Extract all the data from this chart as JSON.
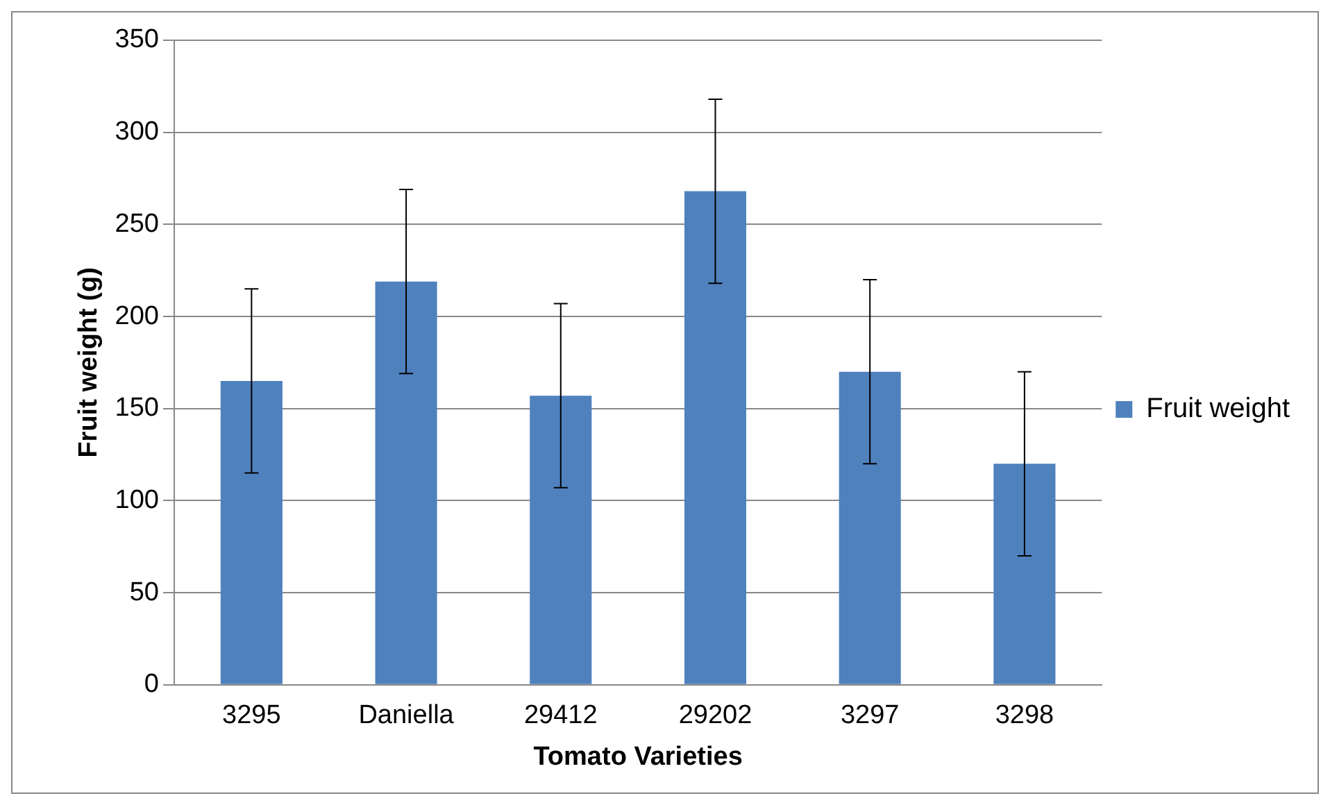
{
  "chart_data": {
    "type": "bar",
    "xlabel": "Tomato Varieties",
    "ylabel": "Fruit weight (g)",
    "categories": [
      "3295",
      "Daniella",
      "29412",
      "29202",
      "3297",
      "3298"
    ],
    "series": [
      {
        "name": "Fruit weight",
        "color": "#4f81bd",
        "values": [
          165,
          219,
          157,
          268,
          170,
          120
        ],
        "errors": [
          50,
          50,
          50,
          50,
          50,
          50
        ]
      }
    ],
    "ylim": [
      0,
      350
    ],
    "yticks": [
      0,
      50,
      100,
      150,
      200,
      250,
      300,
      350
    ],
    "grid": "y",
    "legend": "right"
  }
}
